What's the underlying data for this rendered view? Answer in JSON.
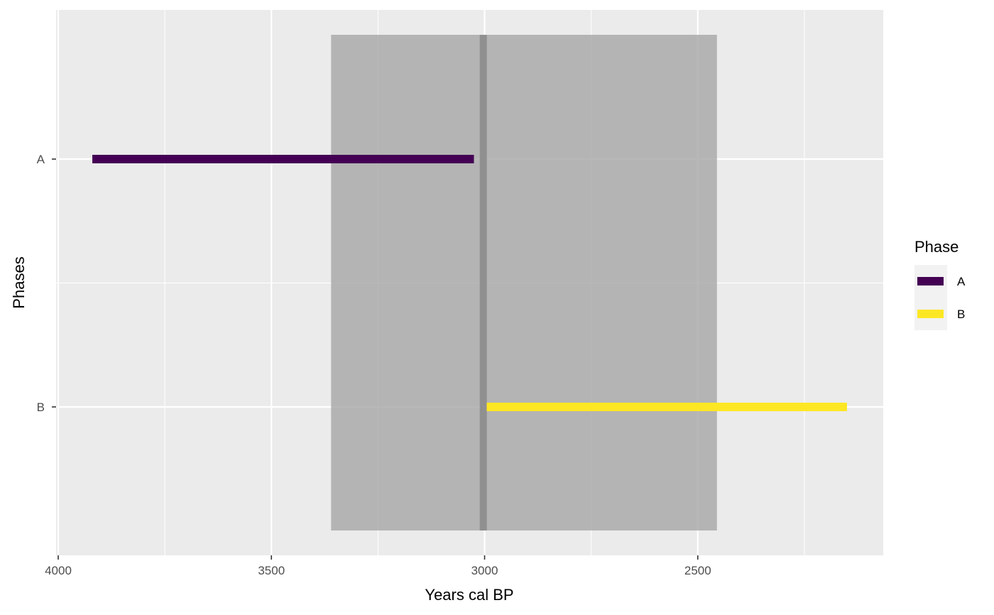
{
  "chart_data": {
    "type": "range-bar",
    "xlabel": "Years cal BP",
    "ylabel": "Phases",
    "x_reversed": true,
    "xlim": [
      4005,
      2065
    ],
    "x_ticks": [
      4000,
      3500,
      3000,
      2500
    ],
    "x_minor_ticks": [
      3750,
      3250,
      2750,
      2250
    ],
    "categories": [
      "A",
      "B"
    ],
    "series": [
      {
        "name": "A",
        "color": "#440154",
        "start": 3920,
        "end": 3025
      },
      {
        "name": "B",
        "color": "#FDE725",
        "start": 2995,
        "end": 2150
      }
    ],
    "overlap_band": {
      "start": 3360,
      "end": 2455,
      "color": "#a6a6a6"
    },
    "boundary_line": {
      "at": 3003,
      "color": "#8c8c8c"
    },
    "grid": true,
    "legend": {
      "title": "Phase",
      "placement": "right",
      "items": [
        "A",
        "B"
      ]
    }
  }
}
